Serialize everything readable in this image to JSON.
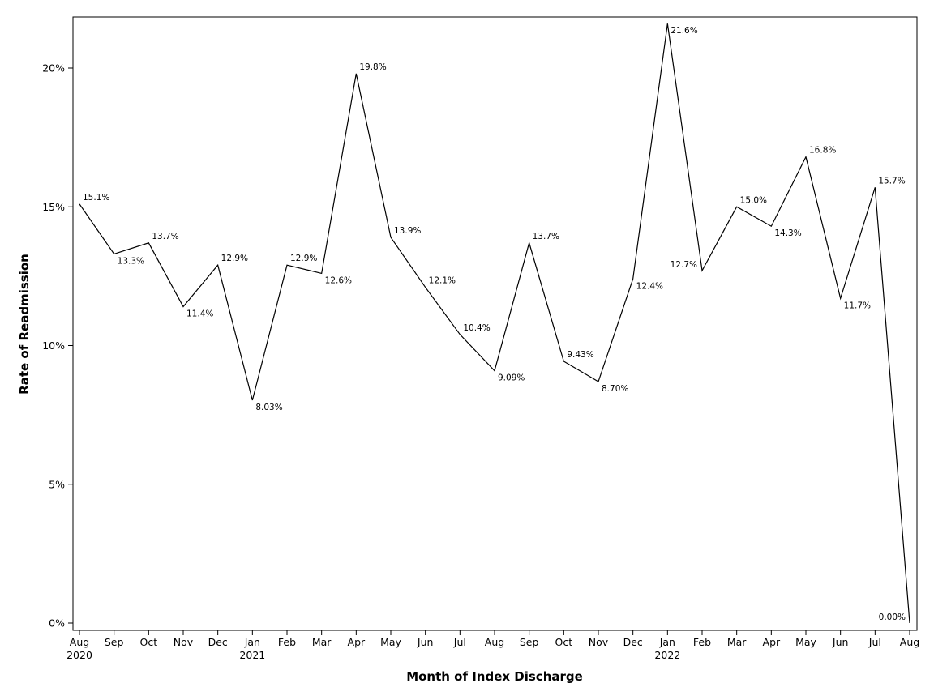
{
  "chart_data": {
    "type": "line",
    "xlabel": "Month of Index Discharge",
    "ylabel": "Rate of Readmission",
    "ylim": [
      0,
      22
    ],
    "yticks": [
      {
        "value": 0,
        "label": "0%"
      },
      {
        "value": 5,
        "label": "5%"
      },
      {
        "value": 10,
        "label": "10%"
      },
      {
        "value": 15,
        "label": "15%"
      },
      {
        "value": 20,
        "label": "20%"
      }
    ],
    "x": [
      "2020-08",
      "2020-09",
      "2020-10",
      "2020-11",
      "2020-12",
      "2021-01",
      "2021-02",
      "2021-03",
      "2021-04",
      "2021-05",
      "2021-06",
      "2021-07",
      "2021-08",
      "2021-09",
      "2021-10",
      "2021-11",
      "2021-12",
      "2022-01",
      "2022-02",
      "2022-03",
      "2022-04",
      "2022-05",
      "2022-06",
      "2022-07",
      "2022-08"
    ],
    "xticks": [
      {
        "month": "Aug",
        "year": "2020"
      },
      {
        "month": "Sep",
        "year": ""
      },
      {
        "month": "Oct",
        "year": ""
      },
      {
        "month": "Nov",
        "year": ""
      },
      {
        "month": "Dec",
        "year": ""
      },
      {
        "month": "Jan",
        "year": "2021"
      },
      {
        "month": "Feb",
        "year": ""
      },
      {
        "month": "Mar",
        "year": ""
      },
      {
        "month": "Apr",
        "year": ""
      },
      {
        "month": "May",
        "year": ""
      },
      {
        "month": "Jun",
        "year": ""
      },
      {
        "month": "Jul",
        "year": ""
      },
      {
        "month": "Aug",
        "year": ""
      },
      {
        "month": "Sep",
        "year": ""
      },
      {
        "month": "Oct",
        "year": ""
      },
      {
        "month": "Nov",
        "year": ""
      },
      {
        "month": "Dec",
        "year": ""
      },
      {
        "month": "Jan",
        "year": "2022"
      },
      {
        "month": "Feb",
        "year": ""
      },
      {
        "month": "Mar",
        "year": ""
      },
      {
        "month": "Apr",
        "year": ""
      },
      {
        "month": "May",
        "year": ""
      },
      {
        "month": "Jun",
        "year": ""
      },
      {
        "month": "Jul",
        "year": ""
      },
      {
        "month": "Aug",
        "year": ""
      }
    ],
    "values": [
      15.1,
      13.3,
      13.7,
      11.4,
      12.9,
      8.03,
      12.9,
      12.6,
      19.8,
      13.9,
      12.1,
      10.4,
      9.09,
      13.7,
      9.43,
      8.7,
      12.4,
      21.6,
      12.7,
      15.0,
      14.3,
      16.8,
      11.7,
      15.7,
      0.0
    ],
    "labels": [
      "15.1%",
      "13.3%",
      "13.7%",
      "11.4%",
      "12.9%",
      "8.03%",
      "12.9%",
      "12.6%",
      "19.8%",
      "13.9%",
      "12.1%",
      "10.4%",
      "9.09%",
      "13.7%",
      "9.43%",
      "8.70%",
      "12.4%",
      "21.6%",
      "12.7%",
      "15.0%",
      "14.3%",
      "16.8%",
      "11.7%",
      "15.7%",
      "0.00%"
    ],
    "label_placement": [
      "above-right",
      "below-right",
      "above-right",
      "below-right",
      "above-right",
      "below-right",
      "above-right",
      "below-right",
      "above-right",
      "above-right",
      "above-right",
      "above-right",
      "below-right",
      "above-right",
      "above-right",
      "below-right",
      "below-right",
      "below-right",
      "left",
      "above-right",
      "below-right",
      "above-right",
      "below-right",
      "above-right",
      "above-left"
    ],
    "grid": false,
    "legend": "none",
    "line_color": "#000000"
  }
}
